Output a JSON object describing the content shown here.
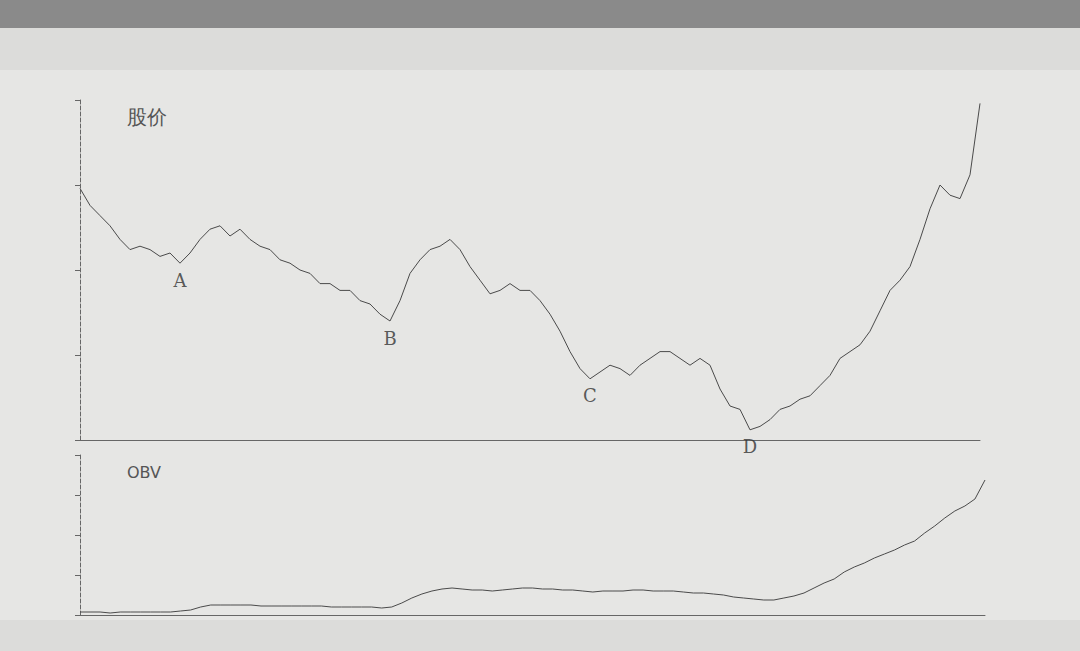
{
  "chart_data": [
    {
      "type": "line",
      "title": "股价",
      "color": "#4a4a4a",
      "grid": false,
      "tick_labels": false,
      "categories": [
        null,
        null,
        null,
        null,
        null,
        null,
        null,
        null,
        null,
        null,
        null,
        null,
        null,
        null,
        null,
        null,
        null,
        null,
        null,
        null,
        null,
        null,
        null,
        null,
        null,
        null,
        null,
        null,
        null,
        null,
        null,
        null,
        null,
        null,
        null,
        null,
        null,
        null,
        null,
        null,
        null,
        null,
        null,
        null,
        null,
        null,
        null,
        null,
        null,
        null,
        null,
        null,
        null,
        null,
        null,
        null,
        null,
        null,
        null,
        null,
        null,
        null,
        null,
        null,
        null,
        null,
        null,
        null,
        null,
        null,
        null,
        null,
        null,
        null,
        null,
        null,
        null,
        null,
        null,
        null,
        null,
        null,
        null,
        null,
        null,
        null,
        null,
        null,
        null,
        null,
        null
      ],
      "values": [
        74,
        69,
        66,
        63,
        59,
        56,
        57,
        56,
        54,
        55,
        52,
        55,
        59,
        62,
        63,
        60,
        62,
        59,
        57,
        56,
        53,
        52,
        50,
        49,
        46,
        46,
        44,
        44,
        41,
        40,
        37,
        35,
        41,
        49,
        53,
        56,
        57,
        59,
        56,
        51,
        47,
        43,
        44,
        46,
        44,
        44,
        41,
        37,
        32,
        26,
        21,
        18,
        20,
        22,
        21,
        19,
        22,
        24,
        26,
        26,
        24,
        22,
        24,
        22,
        15,
        10,
        9,
        3,
        4,
        6,
        9,
        10,
        12,
        13,
        16,
        19,
        24,
        26,
        28,
        32,
        38,
        44,
        47,
        51,
        59,
        68,
        75,
        72,
        71,
        78,
        99
      ],
      "ylim": [
        0,
        100
      ],
      "yticks": [
        0,
        25,
        50,
        75,
        100
      ],
      "annotations": [
        {
          "text": "A",
          "index": 10
        },
        {
          "text": "B",
          "index": 31
        },
        {
          "text": "C",
          "index": 51
        },
        {
          "text": "D",
          "index": 67
        }
      ]
    },
    {
      "type": "line",
      "title": "OBV",
      "color": "#4a4a4a",
      "grid": false,
      "tick_labels": false,
      "categories": [
        null,
        null,
        null,
        null,
        null,
        null,
        null,
        null,
        null,
        null,
        null,
        null,
        null,
        null,
        null,
        null,
        null,
        null,
        null,
        null,
        null,
        null,
        null,
        null,
        null,
        null,
        null,
        null,
        null,
        null,
        null,
        null,
        null,
        null,
        null,
        null,
        null,
        null,
        null,
        null,
        null,
        null,
        null,
        null,
        null,
        null,
        null,
        null,
        null,
        null,
        null,
        null,
        null,
        null,
        null,
        null,
        null,
        null,
        null,
        null,
        null,
        null,
        null,
        null,
        null,
        null,
        null,
        null,
        null,
        null,
        null,
        null,
        null,
        null,
        null,
        null,
        null,
        null,
        null,
        null,
        null,
        null,
        null,
        null,
        null,
        null,
        null,
        null,
        null,
        null,
        null
      ],
      "values": [
        3,
        3,
        3,
        2,
        3,
        3,
        3,
        3,
        3,
        3,
        4,
        5,
        8,
        10,
        10,
        10,
        10,
        10,
        9,
        9,
        9,
        9,
        9,
        9,
        9,
        8,
        8,
        8,
        8,
        8,
        7,
        8,
        12,
        17,
        21,
        24,
        26,
        27,
        26,
        25,
        25,
        24,
        25,
        26,
        27,
        27,
        26,
        26,
        25,
        25,
        24,
        23,
        24,
        24,
        24,
        25,
        25,
        24,
        24,
        24,
        23,
        22,
        22,
        21,
        20,
        18,
        17,
        16,
        15,
        15,
        17,
        19,
        22,
        27,
        32,
        36,
        43,
        48,
        52,
        57,
        61,
        65,
        70,
        74,
        82,
        89,
        97,
        104,
        109,
        116,
        135
      ],
      "ylim": [
        0,
        160
      ],
      "yticks": [
        0,
        40,
        80,
        120,
        160
      ]
    }
  ]
}
